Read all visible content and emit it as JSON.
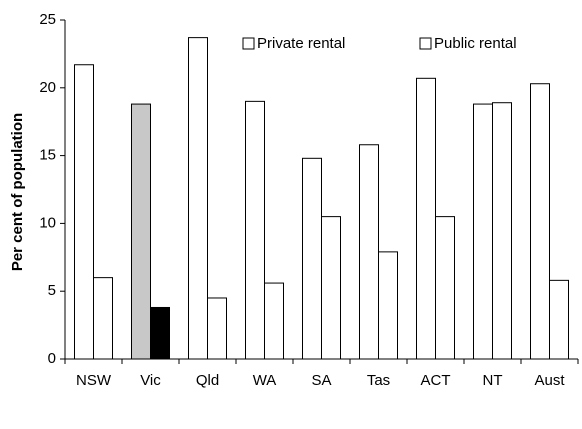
{
  "chart_data": {
    "type": "bar",
    "ylabel": "Per cent of population",
    "categories": [
      "NSW",
      "Vic",
      "Qld",
      "WA",
      "SA",
      "Tas",
      "ACT",
      "NT",
      "Aust"
    ],
    "series": [
      {
        "name": "Private rental",
        "color": "#ffffff",
        "colors": [
          "#ffffff",
          "#c8c8c8",
          "#ffffff",
          "#ffffff",
          "#ffffff",
          "#ffffff",
          "#ffffff",
          "#ffffff",
          "#ffffff"
        ],
        "values": [
          21.7,
          18.8,
          23.7,
          19.0,
          14.8,
          15.8,
          20.7,
          18.8,
          20.3
        ]
      },
      {
        "name": "Public rental",
        "color": "#ffffff",
        "colors": [
          "#ffffff",
          "#000000",
          "#ffffff",
          "#ffffff",
          "#ffffff",
          "#ffffff",
          "#ffffff",
          "#ffffff",
          "#ffffff"
        ],
        "values": [
          6.0,
          3.8,
          4.5,
          5.6,
          10.5,
          7.9,
          10.5,
          18.9,
          5.8
        ]
      }
    ],
    "ylim": [
      0,
      25
    ],
    "yticks": [
      0,
      5,
      10,
      15,
      20,
      25
    ],
    "legend": "top"
  }
}
